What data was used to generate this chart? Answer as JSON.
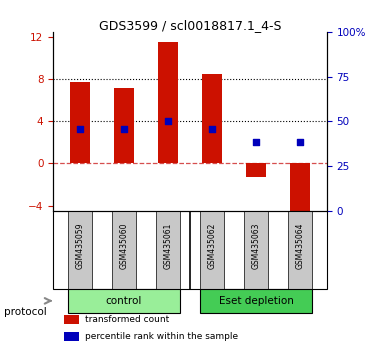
{
  "title": "GDS3599 / scl0018817.1_4-S",
  "samples": [
    "GSM435059",
    "GSM435060",
    "GSM435061",
    "GSM435062",
    "GSM435063",
    "GSM435064"
  ],
  "bar_values": [
    7.7,
    7.2,
    11.5,
    8.5,
    -1.3,
    -4.5
  ],
  "blue_dots_left": [
    3.3,
    3.3,
    4.0,
    3.3,
    2.0,
    2.0
  ],
  "bar_color": "#CC1100",
  "dot_color": "#0000BB",
  "ylim_left": [
    -4.5,
    12.5
  ],
  "ylim_right": [
    0,
    100
  ],
  "yticks_left": [
    -4,
    0,
    4,
    8,
    12
  ],
  "yticks_right": [
    0,
    25,
    50,
    75,
    100
  ],
  "yticklabels_right": [
    "0",
    "25",
    "50",
    "75",
    "100%"
  ],
  "groups": [
    {
      "label": "control",
      "indices": [
        0,
        1,
        2
      ],
      "color": "#99EE99"
    },
    {
      "label": "Eset depletion",
      "indices": [
        3,
        4,
        5
      ],
      "color": "#44CC55"
    }
  ],
  "protocol_label": "protocol",
  "legend": [
    {
      "color": "#CC1100",
      "label": "transformed count"
    },
    {
      "color": "#0000BB",
      "label": "percentile rank within the sample"
    }
  ],
  "bg_color": "#FFFFFF",
  "tick_color_left": "#CC1100",
  "tick_color_right": "#0000BB",
  "bar_width": 0.45,
  "sample_bg": "#C8C8C8"
}
